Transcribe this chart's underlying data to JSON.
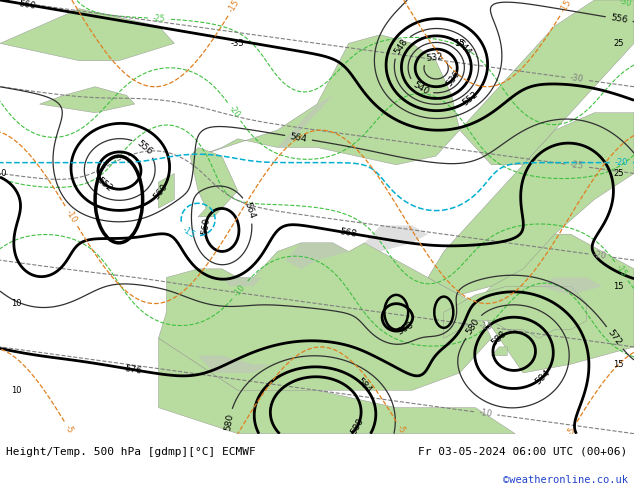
{
  "title_left": "Height/Temp. 500 hPa [gdmp][°C] ECMWF",
  "title_right": "Fr 03-05-2024 06:00 UTC (00+06)",
  "credit": "©weatheronline.co.uk",
  "bg_land_color": "#b8dba0",
  "bg_sea_color": "#d8d8d8",
  "bg_mountain_color": "#c0c0c0",
  "contour_color_z500_thick": "#000000",
  "contour_color_z500_thin": "#404040",
  "contour_color_temp_gray": "#808080",
  "contour_color_cyan": "#00b0d0",
  "contour_color_green_dash": "#40c040",
  "contour_color_orange": "#e08020",
  "text_color_label": "#000000",
  "text_color_credit": "#2244cc",
  "figwidth": 6.34,
  "figheight": 4.9,
  "dpi": 100,
  "bottom_bar_color": "#f4f4f4"
}
